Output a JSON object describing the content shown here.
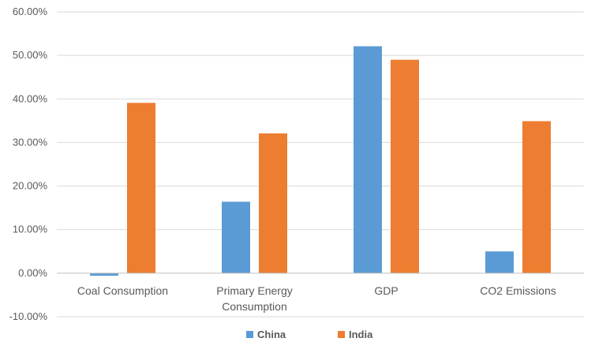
{
  "chart_data": {
    "type": "bar",
    "title": "",
    "xlabel": "",
    "ylabel": "",
    "categories": [
      [
        "Coal Consumption"
      ],
      [
        "Primary Energy",
        "Consumption"
      ],
      [
        "GDP"
      ],
      [
        "CO2 Emissions"
      ]
    ],
    "series": [
      {
        "name": "China",
        "color": "#5b9bd5",
        "values": [
          -0.6,
          16.4,
          52.1,
          5.0
        ]
      },
      {
        "name": "India",
        "color": "#ed7d31",
        "values": [
          39.1,
          32.1,
          49.0,
          34.9
        ]
      }
    ],
    "ylim": [
      -10,
      60
    ],
    "yticks": [
      -10,
      0,
      10,
      20,
      30,
      40,
      50,
      60
    ],
    "ytick_labels": [
      "-10.00%",
      "0.00%",
      "10.00%",
      "20.00%",
      "30.00%",
      "40.00%",
      "50.00%",
      "60.00%"
    ],
    "grid": true,
    "legend_position": "bottom"
  },
  "style": {
    "grid_color": "#d9d9d9",
    "axis_color": "#bfbfbf",
    "text_color": "#595959"
  }
}
